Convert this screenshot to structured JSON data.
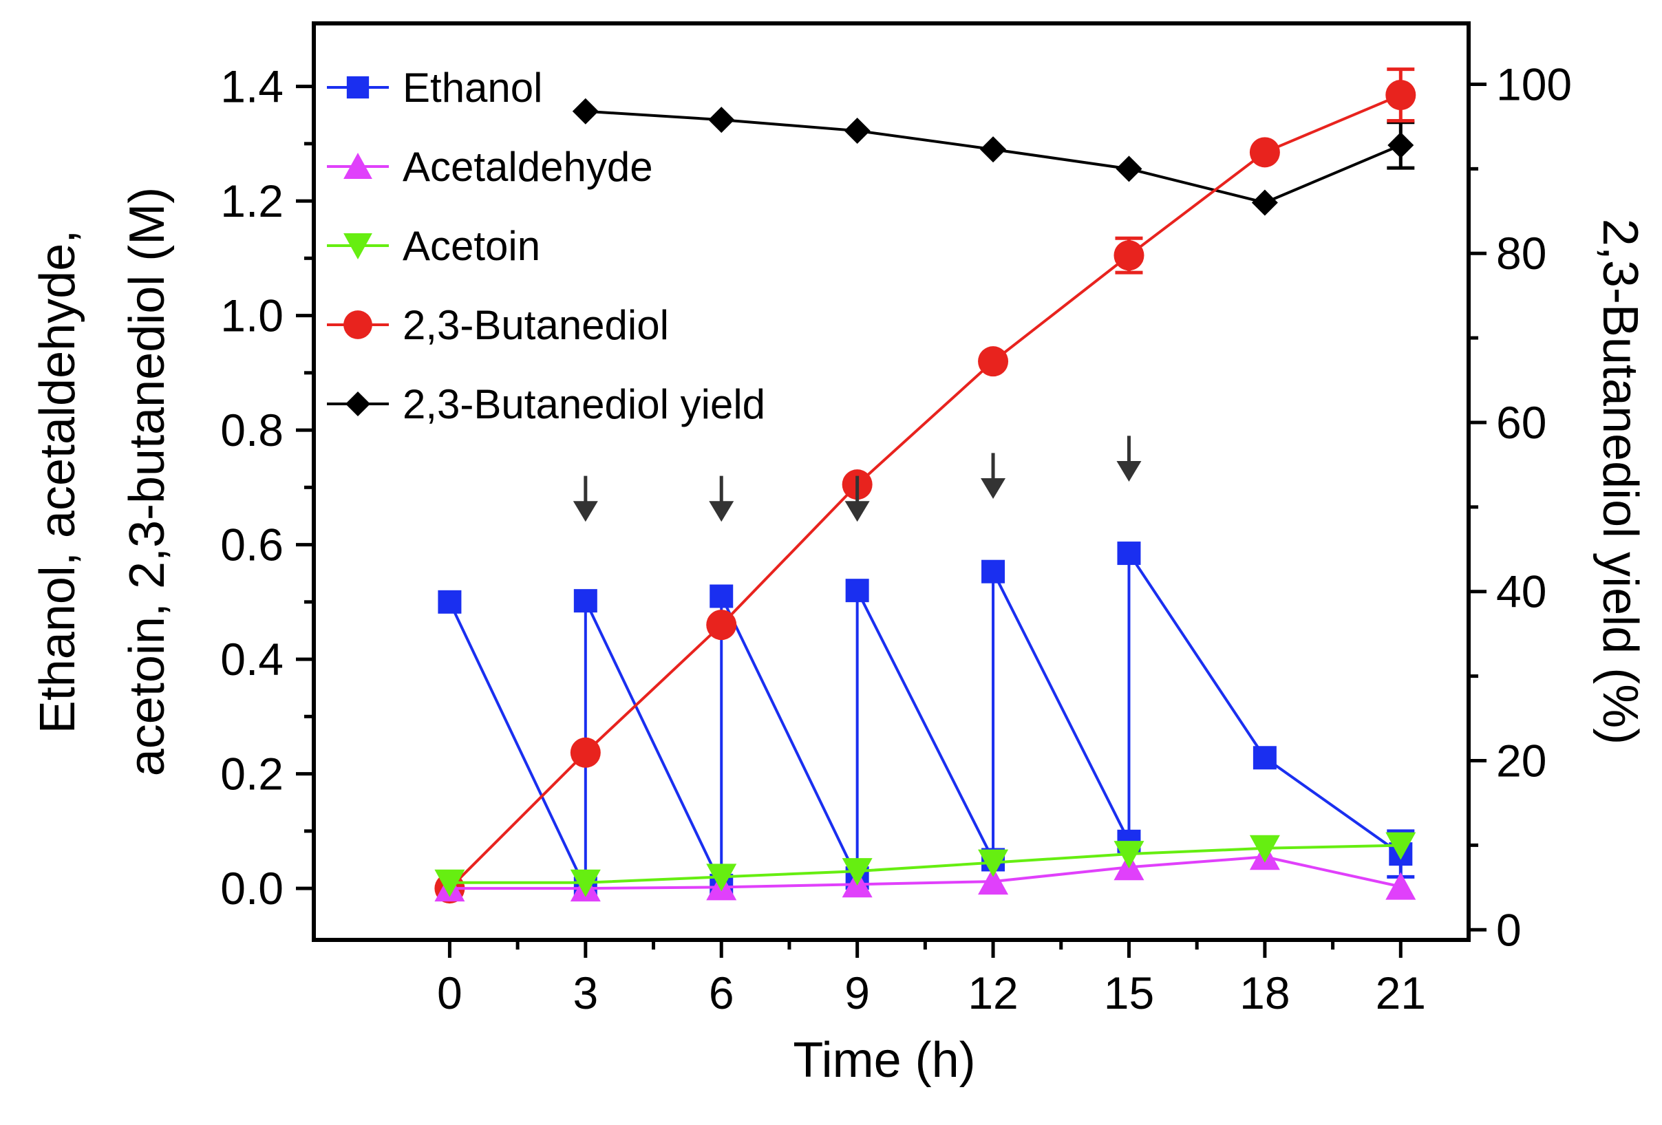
{
  "chart_data": {
    "type": "line",
    "xlabel": "Time (h)",
    "ylabel": "Ethanol, acetaldehyde, acetoin, 2,3-butanediol (M)",
    "ylabel_lines": [
      "Ethanol, acetaldehyde,",
      "acetoin, 2,3-butanediol (M)"
    ],
    "y2label": "2,3-Butanediol yield (%)",
    "xlim": [
      -3,
      22.5
    ],
    "ylim": [
      -0.09,
      1.51
    ],
    "y2lim": [
      -1.2,
      107.2
    ],
    "x_ticks": [
      0,
      3,
      6,
      9,
      12,
      15,
      18,
      21
    ],
    "x_tick_labels": [
      "0",
      "3",
      "6",
      "9",
      "12",
      "15",
      "18",
      "21"
    ],
    "x_minor_ticks": [
      1.5,
      4.5,
      7.5,
      10.5,
      13.5,
      16.5,
      19.5
    ],
    "y_ticks": [
      0.0,
      0.2,
      0.4,
      0.6,
      0.8,
      1.0,
      1.2,
      1.4
    ],
    "y_tick_labels": [
      "0.0",
      "0.2",
      "0.4",
      "0.6",
      "0.8",
      "1.0",
      "1.2",
      "1.4"
    ],
    "y_minor_ticks": [
      0.1,
      0.3,
      0.5,
      0.7,
      0.9,
      1.1,
      1.3
    ],
    "y2_ticks": [
      0,
      20,
      40,
      60,
      80,
      100
    ],
    "y2_tick_labels": [
      "0",
      "20",
      "40",
      "60",
      "80",
      "100"
    ],
    "y2_minor_ticks": [
      10,
      30,
      50,
      70,
      90
    ],
    "legend_position": "top-left",
    "series": [
      {
        "name": "Ethanol",
        "color": "#1a2ff0",
        "marker": "square",
        "axis": "left",
        "points": [
          {
            "x": 0,
            "y": 0.5
          },
          {
            "x": 3,
            "y": 0.0
          },
          {
            "x": 3,
            "y": 0.502
          },
          {
            "x": 6,
            "y": 0.005
          },
          {
            "x": 6,
            "y": 0.51
          },
          {
            "x": 9,
            "y": 0.018
          },
          {
            "x": 9,
            "y": 0.52
          },
          {
            "x": 12,
            "y": 0.05
          },
          {
            "x": 12,
            "y": 0.553
          },
          {
            "x": 15,
            "y": 0.082
          },
          {
            "x": 15,
            "y": 0.585
          },
          {
            "x": 18,
            "y": 0.228
          },
          {
            "x": 21,
            "y": 0.06,
            "err": 0.04
          }
        ]
      },
      {
        "name": "Acetaldehyde",
        "color": "#e040fb",
        "marker": "triangle-up",
        "axis": "left",
        "points": [
          {
            "x": 0,
            "y": 0.0
          },
          {
            "x": 3,
            "y": 0.0
          },
          {
            "x": 6,
            "y": 0.002
          },
          {
            "x": 9,
            "y": 0.007
          },
          {
            "x": 12,
            "y": 0.012
          },
          {
            "x": 15,
            "y": 0.037
          },
          {
            "x": 18,
            "y": 0.055
          },
          {
            "x": 21,
            "y": 0.003
          }
        ]
      },
      {
        "name": "Acetoin",
        "color": "#66ee11",
        "marker": "triangle-down",
        "axis": "left",
        "points": [
          {
            "x": 0,
            "y": 0.01
          },
          {
            "x": 3,
            "y": 0.01
          },
          {
            "x": 6,
            "y": 0.02
          },
          {
            "x": 9,
            "y": 0.03
          },
          {
            "x": 12,
            "y": 0.045
          },
          {
            "x": 15,
            "y": 0.06
          },
          {
            "x": 18,
            "y": 0.07
          },
          {
            "x": 21,
            "y": 0.075
          }
        ]
      },
      {
        "name": "2,3-Butanediol",
        "color": "#e8231e",
        "marker": "circle",
        "axis": "left",
        "points": [
          {
            "x": 0,
            "y": 0.0
          },
          {
            "x": 3,
            "y": 0.237
          },
          {
            "x": 6,
            "y": 0.46
          },
          {
            "x": 9,
            "y": 0.705
          },
          {
            "x": 12,
            "y": 0.92
          },
          {
            "x": 15,
            "y": 1.105,
            "err": 0.03
          },
          {
            "x": 18,
            "y": 1.285
          },
          {
            "x": 21,
            "y": 1.385,
            "err": 0.045
          }
        ]
      },
      {
        "name": "2,3-Butanediol yield",
        "color": "#000000",
        "marker": "diamond",
        "axis": "right",
        "points": [
          {
            "x": 3,
            "y": 96.8
          },
          {
            "x": 6,
            "y": 95.8
          },
          {
            "x": 9,
            "y": 94.5
          },
          {
            "x": 12,
            "y": 92.3
          },
          {
            "x": 15,
            "y": 90.0
          },
          {
            "x": 18,
            "y": 86.0
          },
          {
            "x": 21,
            "y": 92.8,
            "err": 2.7
          }
        ]
      }
    ],
    "annotations": [
      {
        "type": "arrow",
        "x": 3,
        "y_tip": 0.64,
        "y_tail": 0.72,
        "color": "#333333"
      },
      {
        "type": "arrow",
        "x": 6,
        "y_tip": 0.64,
        "y_tail": 0.72,
        "color": "#333333"
      },
      {
        "type": "arrow",
        "x": 9,
        "y_tip": 0.64,
        "y_tail": 0.72,
        "color": "#333333"
      },
      {
        "type": "arrow",
        "x": 12,
        "y_tip": 0.68,
        "y_tail": 0.76,
        "color": "#333333"
      },
      {
        "type": "arrow",
        "x": 15,
        "y_tip": 0.71,
        "y_tail": 0.79,
        "color": "#333333"
      }
    ]
  }
}
